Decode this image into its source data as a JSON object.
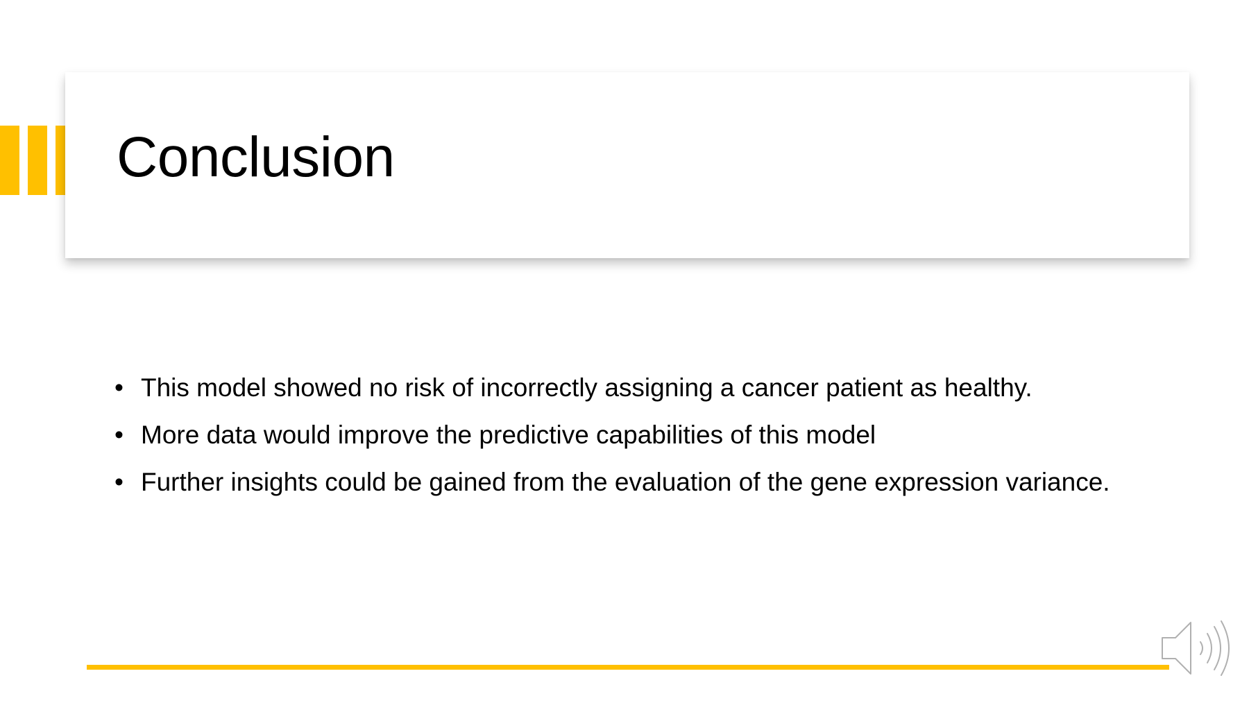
{
  "slide": {
    "title": "Conclusion",
    "bullets": [
      {
        "text": "This model showed no risk of incorrectly assigning a cancer patient as healthy."
      },
      {
        "text": "More data would improve the predictive capabilities of this model"
      },
      {
        "text": "Further insights could be gained from the evaluation of the gene expression variance."
      }
    ],
    "bullet_glyph": "•"
  },
  "audio": {
    "icon": "speaker-icon"
  },
  "colors": {
    "accent": "#FFC000",
    "text": "#000000",
    "background": "#FFFFFF"
  }
}
